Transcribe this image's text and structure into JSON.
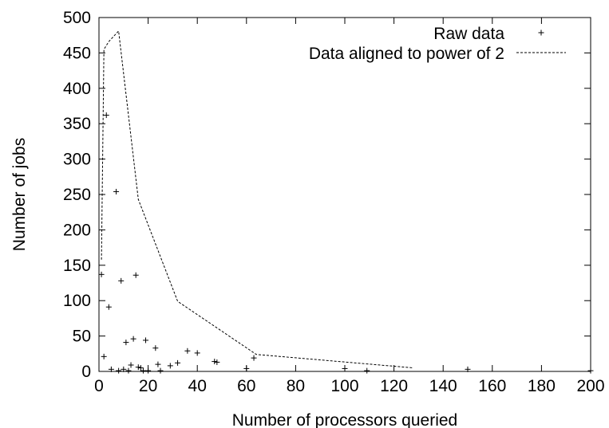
{
  "chart_data": {
    "type": "scatter",
    "title": "",
    "xlabel": "Number of processors queried",
    "ylabel": "Number of jobs",
    "xlim": [
      0,
      200
    ],
    "ylim": [
      0,
      500
    ],
    "xticks": [
      0,
      20,
      40,
      60,
      80,
      100,
      120,
      140,
      160,
      180,
      200
    ],
    "yticks": [
      0,
      50,
      100,
      150,
      200,
      250,
      300,
      350,
      400,
      450,
      500
    ],
    "grid": false,
    "legend_position": "top-right",
    "series": [
      {
        "name": "Raw data",
        "style": "points",
        "marker": "plus",
        "color": "#000000",
        "x": [
          1,
          2,
          3,
          4,
          5,
          7,
          8,
          9,
          10,
          11,
          12,
          13,
          14,
          15,
          16,
          17,
          18,
          19,
          20,
          23,
          24,
          25,
          29,
          32,
          36,
          40,
          47,
          48,
          60,
          63,
          100,
          109,
          150,
          200
        ],
        "y": [
          137,
          21,
          362,
          91,
          3,
          254,
          1,
          128,
          3,
          41,
          1,
          9,
          46,
          136,
          6,
          5,
          1,
          44,
          1,
          33,
          10,
          1,
          8,
          12,
          29,
          26,
          14,
          13,
          4,
          19,
          4,
          1,
          3,
          1
        ]
      },
      {
        "name": "Data aligned to power of 2",
        "style": "dashed-line",
        "color": "#000000",
        "x": [
          1,
          2,
          4,
          8,
          16,
          32,
          64,
          128
        ],
        "y": [
          158,
          455,
          466,
          481,
          243,
          99,
          24,
          5
        ]
      }
    ]
  }
}
